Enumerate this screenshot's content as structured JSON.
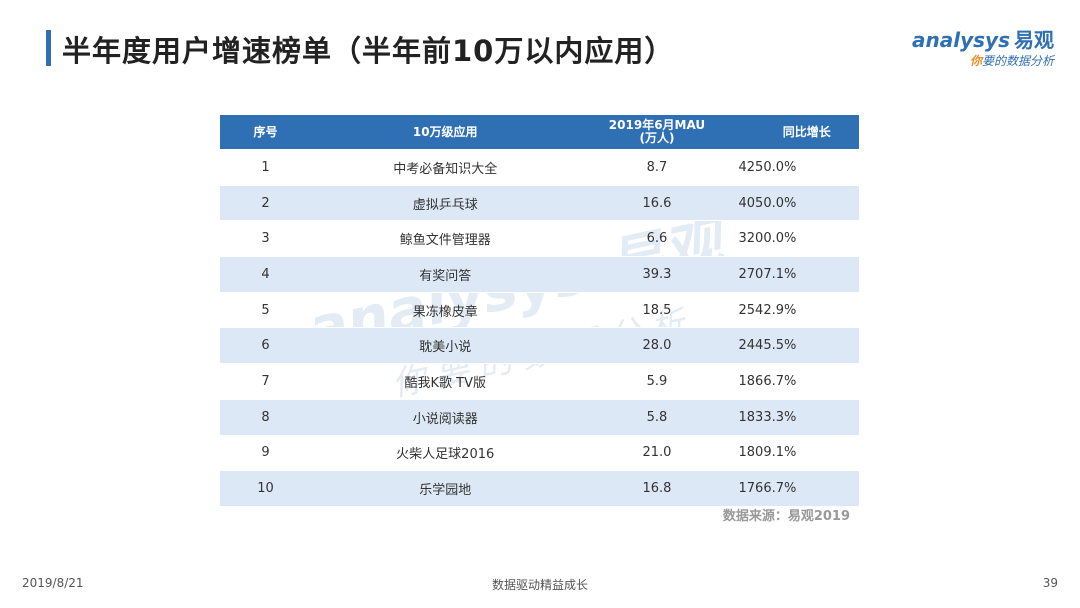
{
  "header": {
    "title": "半年度用户增速榜单（半年前10万以内应用）",
    "accent_color": "#2f6fb3"
  },
  "logo": {
    "wordmark": "analysys",
    "brand_cn": "易观",
    "tagline_highlight": "你",
    "tagline_rest": "要的数据分析"
  },
  "table": {
    "header_color": "#2f6fb3",
    "stripe_color": "#dce8f5",
    "columns": {
      "rank": "序号",
      "app": "10万级应用",
      "mau_line1": "2019年6月MAU",
      "mau_line2": "(万人)",
      "growth": "同比增长"
    },
    "rows": [
      {
        "rank": "1",
        "app": "中考必备知识大全",
        "mau": "8.7",
        "growth": "4250.0%"
      },
      {
        "rank": "2",
        "app": "虚拟乒乓球",
        "mau": "16.6",
        "growth": "4050.0%"
      },
      {
        "rank": "3",
        "app": "鲸鱼文件管理器",
        "mau": "6.6",
        "growth": "3200.0%"
      },
      {
        "rank": "4",
        "app": "有奖问答",
        "mau": "39.3",
        "growth": "2707.1%"
      },
      {
        "rank": "5",
        "app": "果冻橡皮章",
        "mau": "18.5",
        "growth": "2542.9%"
      },
      {
        "rank": "6",
        "app": "耽美小说",
        "mau": "28.0",
        "growth": "2445.5%"
      },
      {
        "rank": "7",
        "app": "酷我K歌 TV版",
        "mau": "5.9",
        "growth": "1866.7%"
      },
      {
        "rank": "8",
        "app": "小说阅读器",
        "mau": "5.8",
        "growth": "1833.3%"
      },
      {
        "rank": "9",
        "app": "火柴人足球2016",
        "mau": "21.0",
        "growth": "1809.1%"
      },
      {
        "rank": "10",
        "app": "乐学园地",
        "mau": "16.8",
        "growth": "1766.7%"
      }
    ]
  },
  "source": "数据来源：易观2019",
  "footer": {
    "date": "2019/8/21",
    "slogan": "数据驱动精益成长",
    "page": "39"
  }
}
